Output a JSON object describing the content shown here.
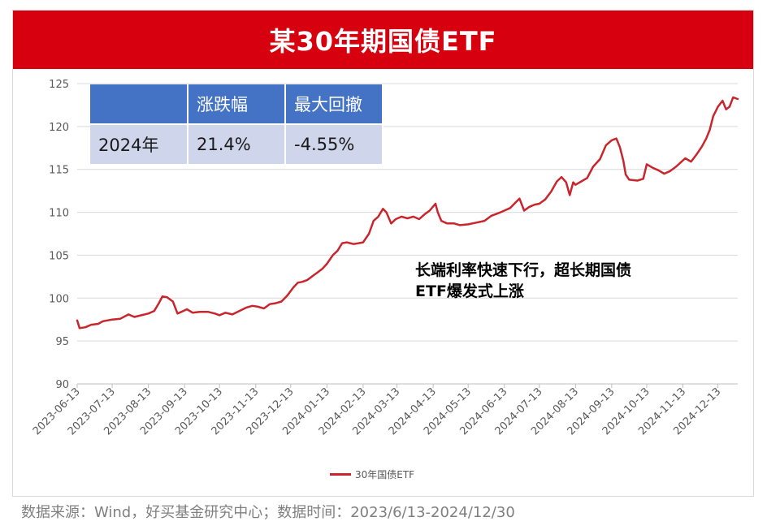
{
  "title": "某30年期国债ETF",
  "table": {
    "headers": [
      "",
      "涨跌幅",
      "最大回撤"
    ],
    "rows": [
      [
        "2024年",
        "21.4%",
        "-4.55%"
      ]
    ]
  },
  "annotation": {
    "line1": "长端利率快速下行，超长期国债",
    "line2": "ETF爆发式上涨"
  },
  "source": "数据来源：Wind，好买基金研究中心；数据时间：2023/6/13-2024/12/30",
  "colors": {
    "title_bg": "#d7000f",
    "line": "#c9252c",
    "table_head": "#4472c4",
    "table_row": "#cfd5ea"
  },
  "chart_data": {
    "type": "line",
    "ylim": [
      90,
      125
    ],
    "yticks": [
      90,
      95,
      100,
      105,
      110,
      115,
      120,
      125
    ],
    "xlim": [
      "2023-06-13",
      "2024-12-30"
    ],
    "xticks": [
      "2023-06-13",
      "2023-07-13",
      "2023-08-13",
      "2023-09-13",
      "2023-10-13",
      "2023-11-13",
      "2023-12-13",
      "2024-01-13",
      "2024-02-13",
      "2024-03-13",
      "2024-04-13",
      "2024-05-13",
      "2024-06-13",
      "2024-07-13",
      "2024-08-13",
      "2024-09-13",
      "2024-10-13",
      "2024-11-13",
      "2024-12-13"
    ],
    "legend": "bottom",
    "grid": true,
    "series": [
      {
        "name": "30年国债ETF",
        "points": [
          [
            "2023-06-13",
            97.4
          ],
          [
            "2023-06-15",
            96.5
          ],
          [
            "2023-06-20",
            96.6
          ],
          [
            "2023-06-25",
            96.9
          ],
          [
            "2023-07-01",
            97.0
          ],
          [
            "2023-07-05",
            97.3
          ],
          [
            "2023-07-13",
            97.5
          ],
          [
            "2023-07-20",
            97.6
          ],
          [
            "2023-07-27",
            98.1
          ],
          [
            "2023-08-01",
            97.8
          ],
          [
            "2023-08-07",
            98.0
          ],
          [
            "2023-08-13",
            98.2
          ],
          [
            "2023-08-18",
            98.5
          ],
          [
            "2023-08-22",
            99.4
          ],
          [
            "2023-08-25",
            100.2
          ],
          [
            "2023-08-29",
            100.1
          ],
          [
            "2023-09-03",
            99.6
          ],
          [
            "2023-09-07",
            98.2
          ],
          [
            "2023-09-12",
            98.5
          ],
          [
            "2023-09-15",
            98.7
          ],
          [
            "2023-09-20",
            98.3
          ],
          [
            "2023-09-26",
            98.4
          ],
          [
            "2023-10-03",
            98.4
          ],
          [
            "2023-10-09",
            98.2
          ],
          [
            "2023-10-13",
            98.0
          ],
          [
            "2023-10-18",
            98.3
          ],
          [
            "2023-10-24",
            98.1
          ],
          [
            "2023-10-30",
            98.5
          ],
          [
            "2023-11-05",
            98.9
          ],
          [
            "2023-11-10",
            99.1
          ],
          [
            "2023-11-15",
            99.0
          ],
          [
            "2023-11-20",
            98.8
          ],
          [
            "2023-11-25",
            99.3
          ],
          [
            "2023-11-30",
            99.4
          ],
          [
            "2023-12-05",
            99.6
          ],
          [
            "2023-12-10",
            100.3
          ],
          [
            "2023-12-15",
            101.2
          ],
          [
            "2023-12-19",
            101.8
          ],
          [
            "2023-12-23",
            101.9
          ],
          [
            "2023-12-27",
            102.1
          ],
          [
            "2024-01-01",
            102.6
          ],
          [
            "2024-01-05",
            103.0
          ],
          [
            "2024-01-09",
            103.4
          ],
          [
            "2024-01-13",
            104.0
          ],
          [
            "2024-01-18",
            105.0
          ],
          [
            "2024-01-22",
            105.5
          ],
          [
            "2024-01-26",
            106.4
          ],
          [
            "2024-01-30",
            106.5
          ],
          [
            "2024-02-05",
            106.3
          ],
          [
            "2024-02-13",
            106.5
          ],
          [
            "2024-02-18",
            107.5
          ],
          [
            "2024-02-22",
            109.0
          ],
          [
            "2024-02-26",
            109.5
          ],
          [
            "2024-03-01",
            110.4
          ],
          [
            "2024-03-04",
            110.0
          ],
          [
            "2024-03-08",
            108.7
          ],
          [
            "2024-03-12",
            109.2
          ],
          [
            "2024-03-17",
            109.5
          ],
          [
            "2024-03-22",
            109.3
          ],
          [
            "2024-03-27",
            109.5
          ],
          [
            "2024-04-01",
            109.2
          ],
          [
            "2024-04-06",
            109.8
          ],
          [
            "2024-04-10",
            110.2
          ],
          [
            "2024-04-15",
            111.0
          ],
          [
            "2024-04-17",
            110.0
          ],
          [
            "2024-04-20",
            109.0
          ],
          [
            "2024-04-25",
            108.7
          ],
          [
            "2024-05-01",
            108.7
          ],
          [
            "2024-05-06",
            108.5
          ],
          [
            "2024-05-13",
            108.6
          ],
          [
            "2024-05-20",
            108.8
          ],
          [
            "2024-05-27",
            109.0
          ],
          [
            "2024-06-02",
            109.6
          ],
          [
            "2024-06-08",
            109.9
          ],
          [
            "2024-06-13",
            110.2
          ],
          [
            "2024-06-18",
            110.5
          ],
          [
            "2024-06-23",
            111.2
          ],
          [
            "2024-06-26",
            111.6
          ],
          [
            "2024-06-30",
            110.2
          ],
          [
            "2024-07-04",
            110.6
          ],
          [
            "2024-07-09",
            110.9
          ],
          [
            "2024-07-13",
            111.0
          ],
          [
            "2024-07-18",
            111.5
          ],
          [
            "2024-07-23",
            112.4
          ],
          [
            "2024-07-28",
            113.6
          ],
          [
            "2024-08-01",
            114.1
          ],
          [
            "2024-08-05",
            113.5
          ],
          [
            "2024-08-08",
            112.0
          ],
          [
            "2024-08-11",
            113.5
          ],
          [
            "2024-08-13",
            113.2
          ],
          [
            "2024-08-18",
            113.6
          ],
          [
            "2024-08-23",
            114.0
          ],
          [
            "2024-08-28",
            115.3
          ],
          [
            "2024-09-03",
            116.2
          ],
          [
            "2024-09-08",
            117.8
          ],
          [
            "2024-09-13",
            118.4
          ],
          [
            "2024-09-17",
            118.6
          ],
          [
            "2024-09-20",
            117.6
          ],
          [
            "2024-09-23",
            116.0
          ],
          [
            "2024-09-25",
            114.4
          ],
          [
            "2024-09-28",
            113.8
          ],
          [
            "2024-10-05",
            113.7
          ],
          [
            "2024-10-10",
            113.9
          ],
          [
            "2024-10-13",
            115.6
          ],
          [
            "2024-10-18",
            115.2
          ],
          [
            "2024-10-23",
            114.9
          ],
          [
            "2024-10-28",
            114.5
          ],
          [
            "2024-11-02",
            114.8
          ],
          [
            "2024-11-07",
            115.3
          ],
          [
            "2024-11-11",
            115.8
          ],
          [
            "2024-11-15",
            116.3
          ],
          [
            "2024-11-20",
            115.9
          ],
          [
            "2024-11-25",
            116.8
          ],
          [
            "2024-11-29",
            117.6
          ],
          [
            "2024-12-03",
            118.6
          ],
          [
            "2024-12-06",
            119.6
          ],
          [
            "2024-12-09",
            121.2
          ],
          [
            "2024-12-13",
            122.3
          ],
          [
            "2024-12-17",
            123.0
          ],
          [
            "2024-12-20",
            122.0
          ],
          [
            "2024-12-23",
            122.3
          ],
          [
            "2024-12-26",
            123.4
          ],
          [
            "2024-12-30",
            123.2
          ]
        ]
      }
    ]
  }
}
